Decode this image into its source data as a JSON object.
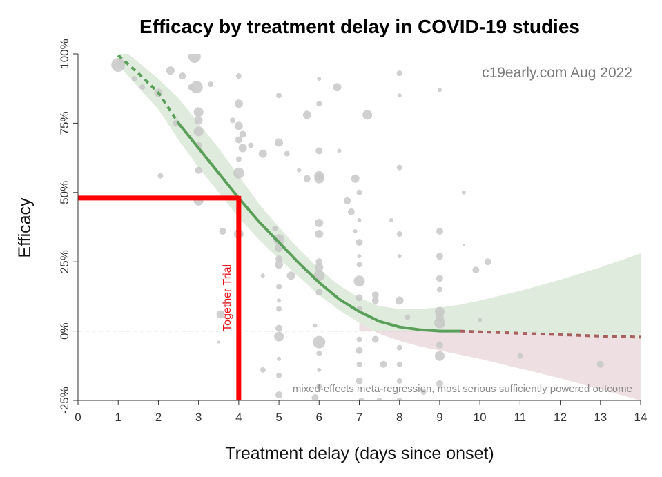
{
  "colors": {
    "fit_line": "#5aa05a",
    "band_upper": "#dfebdc",
    "band_lower": "#eedfe2",
    "points": "#c8c8c8",
    "negative_line": "#a8605e",
    "highlight": "#ff0000",
    "zero_line": "#999999"
  },
  "chart_data": {
    "type": "scatter",
    "title": "Efficacy by treatment delay in COVID-19 studies",
    "watermark": "c19early.com Aug 2022",
    "footnote": "mixed-effects meta-regression, most serious sufficiently powered outcome",
    "xlabel": "Treatment delay (days since onset)",
    "ylabel": "Efficacy",
    "xlim": [
      0,
      14
    ],
    "ylim": [
      -25,
      100
    ],
    "xticks": [
      "0",
      "1",
      "2",
      "3",
      "4",
      "5",
      "6",
      "7",
      "8",
      "9",
      "10",
      "11",
      "12",
      "13",
      "14"
    ],
    "yticks": [
      {
        "value": 100,
        "label": "100%"
      },
      {
        "value": 75,
        "label": "75%"
      },
      {
        "value": 50,
        "label": "50%"
      },
      {
        "value": 25,
        "label": "25%"
      },
      {
        "value": 0,
        "label": "0%"
      },
      {
        "value": -25,
        "label": "-25%"
      }
    ],
    "highlight": {
      "label": "Together Trial",
      "x": 4,
      "y": 48
    },
    "fit": {
      "x": [
        1,
        1.5,
        2,
        2.5,
        3,
        3.5,
        4,
        4.5,
        5,
        5.5,
        6,
        6.5,
        7,
        7.5,
        8,
        8.5,
        9,
        9.5,
        10,
        11,
        12,
        13,
        14
      ],
      "y": [
        99.5,
        93,
        86,
        75,
        66,
        57,
        48,
        39.5,
        32,
        24.5,
        17.5,
        11.5,
        7,
        3.5,
        1.5,
        0.5,
        0,
        0,
        -0.3,
        -0.8,
        -1.3,
        -1.8,
        -2.2
      ],
      "upper": [
        103,
        97,
        91,
        84,
        75,
        66,
        56,
        46,
        37.5,
        29.5,
        22.5,
        16.5,
        12,
        9,
        8,
        8,
        8.5,
        9.5,
        11,
        14.5,
        18.5,
        23,
        28
      ],
      "lower": [
        96,
        88,
        80,
        69,
        59,
        50,
        41,
        33,
        26,
        19.5,
        13,
        7.5,
        3,
        -1,
        -3.5,
        -5.5,
        -7,
        -8.5,
        -10,
        -13.5,
        -17,
        -21,
        -25
      ]
    },
    "points": [
      {
        "x": 1.0,
        "y": 96,
        "s": 10
      },
      {
        "x": 1.4,
        "y": 91,
        "s": 4
      },
      {
        "x": 1.6,
        "y": 88,
        "s": 4
      },
      {
        "x": 2.0,
        "y": 86,
        "s": 6
      },
      {
        "x": 2.05,
        "y": 56,
        "s": 4
      },
      {
        "x": 2.3,
        "y": 94,
        "s": 6
      },
      {
        "x": 2.45,
        "y": 75,
        "s": 5
      },
      {
        "x": 2.6,
        "y": 92,
        "s": 5
      },
      {
        "x": 2.8,
        "y": 88,
        "s": 4
      },
      {
        "x": 2.9,
        "y": 99,
        "s": 9
      },
      {
        "x": 2.95,
        "y": 88,
        "s": 9
      },
      {
        "x": 3.0,
        "y": 79,
        "s": 7
      },
      {
        "x": 3.0,
        "y": 76,
        "s": 6
      },
      {
        "x": 3.0,
        "y": 72,
        "s": 7
      },
      {
        "x": 3.0,
        "y": 67,
        "s": 5
      },
      {
        "x": 3.0,
        "y": 58,
        "s": 5
      },
      {
        "x": 3.0,
        "y": 47,
        "s": 7
      },
      {
        "x": 3.3,
        "y": 89,
        "s": 4
      },
      {
        "x": 3.6,
        "y": 36,
        "s": 5
      },
      {
        "x": 3.55,
        "y": 6,
        "s": 6
      },
      {
        "x": 3.5,
        "y": -4,
        "s": 2
      },
      {
        "x": 3.85,
        "y": 76,
        "s": 4
      },
      {
        "x": 4.0,
        "y": 92,
        "s": 4
      },
      {
        "x": 4.0,
        "y": 82,
        "s": 6
      },
      {
        "x": 4.0,
        "y": 74,
        "s": 6
      },
      {
        "x": 4.0,
        "y": 69,
        "s": 5
      },
      {
        "x": 4.0,
        "y": 62,
        "s": 4
      },
      {
        "x": 4.0,
        "y": 57,
        "s": 8
      },
      {
        "x": 4.0,
        "y": 35,
        "s": 7
      },
      {
        "x": 4.1,
        "y": 71,
        "s": 5
      },
      {
        "x": 4.1,
        "y": 66,
        "s": 6
      },
      {
        "x": 4.3,
        "y": 67,
        "s": 4
      },
      {
        "x": 4.6,
        "y": 64,
        "s": 6
      },
      {
        "x": 4.6,
        "y": 20,
        "s": 3
      },
      {
        "x": 4.6,
        "y": -14,
        "s": 4
      },
      {
        "x": 4.9,
        "y": 37,
        "s": 4
      },
      {
        "x": 5.0,
        "y": 85,
        "s": 4
      },
      {
        "x": 5.0,
        "y": 68,
        "s": 6
      },
      {
        "x": 5.0,
        "y": 33,
        "s": 8
      },
      {
        "x": 5.0,
        "y": 30,
        "s": 6
      },
      {
        "x": 5.0,
        "y": 26,
        "s": 5
      },
      {
        "x": 5.0,
        "y": 24,
        "s": 6
      },
      {
        "x": 5.0,
        "y": 16,
        "s": 4
      },
      {
        "x": 5.0,
        "y": 11,
        "s": 3
      },
      {
        "x": 5.0,
        "y": 8,
        "s": 4
      },
      {
        "x": 5.0,
        "y": 1,
        "s": 5
      },
      {
        "x": 5.0,
        "y": -2,
        "s": 7
      },
      {
        "x": 5.0,
        "y": -10,
        "s": 3
      },
      {
        "x": 5.0,
        "y": -16,
        "s": 4
      },
      {
        "x": 5.0,
        "y": -23,
        "s": 5
      },
      {
        "x": 5.2,
        "y": 64,
        "s": 4
      },
      {
        "x": 5.3,
        "y": 20,
        "s": 6
      },
      {
        "x": 5.5,
        "y": 58,
        "s": 3
      },
      {
        "x": 5.7,
        "y": 78,
        "s": 6
      },
      {
        "x": 5.7,
        "y": 55,
        "s": 5
      },
      {
        "x": 5.9,
        "y": 2,
        "s": 3
      },
      {
        "x": 6.0,
        "y": 91,
        "s": 3
      },
      {
        "x": 6.0,
        "y": 82,
        "s": 4
      },
      {
        "x": 6.0,
        "y": 65,
        "s": 5
      },
      {
        "x": 6.0,
        "y": 56,
        "s": 7
      },
      {
        "x": 6.0,
        "y": 55,
        "s": 7
      },
      {
        "x": 6.0,
        "y": 39,
        "s": 6
      },
      {
        "x": 6.0,
        "y": 35,
        "s": 6
      },
      {
        "x": 6.0,
        "y": 25,
        "s": 5
      },
      {
        "x": 6.0,
        "y": 23,
        "s": 6
      },
      {
        "x": 6.0,
        "y": 20,
        "s": 8
      },
      {
        "x": 6.0,
        "y": 14,
        "s": 5
      },
      {
        "x": 6.0,
        "y": -4,
        "s": 9
      },
      {
        "x": 6.0,
        "y": -8,
        "s": 4
      },
      {
        "x": 6.0,
        "y": -14,
        "s": 3
      },
      {
        "x": 6.0,
        "y": -20,
        "s": 4
      },
      {
        "x": 5.9,
        "y": -24,
        "s": 5
      },
      {
        "x": 6.45,
        "y": 88,
        "s": 6
      },
      {
        "x": 6.5,
        "y": 65,
        "s": 3
      },
      {
        "x": 6.7,
        "y": 47,
        "s": 5
      },
      {
        "x": 6.8,
        "y": 43,
        "s": 5
      },
      {
        "x": 6.9,
        "y": 36,
        "s": 3
      },
      {
        "x": 6.9,
        "y": 55,
        "s": 6
      },
      {
        "x": 7.0,
        "y": 50,
        "s": 4
      },
      {
        "x": 7.0,
        "y": 40,
        "s": 3
      },
      {
        "x": 7.0,
        "y": 32,
        "s": 5
      },
      {
        "x": 7.0,
        "y": 27,
        "s": 3
      },
      {
        "x": 7.0,
        "y": 24,
        "s": 4
      },
      {
        "x": 7.0,
        "y": 18,
        "s": 8
      },
      {
        "x": 7.0,
        "y": 12,
        "s": 5
      },
      {
        "x": 7.0,
        "y": 8,
        "s": 4
      },
      {
        "x": 7.0,
        "y": -3,
        "s": 4
      },
      {
        "x": 7.0,
        "y": -7,
        "s": 5
      },
      {
        "x": 7.0,
        "y": -12,
        "s": 4
      },
      {
        "x": 7.0,
        "y": -18,
        "s": 5
      },
      {
        "x": 7.05,
        "y": -25,
        "s": 4
      },
      {
        "x": 7.2,
        "y": 78,
        "s": 7
      },
      {
        "x": 7.4,
        "y": 13,
        "s": 5
      },
      {
        "x": 7.4,
        "y": 11,
        "s": 5
      },
      {
        "x": 7.4,
        "y": -3,
        "s": 5
      },
      {
        "x": 7.5,
        "y": -25,
        "s": 4
      },
      {
        "x": 7.6,
        "y": -12,
        "s": 5
      },
      {
        "x": 7.8,
        "y": 40,
        "s": 3
      },
      {
        "x": 8.0,
        "y": 93,
        "s": 4
      },
      {
        "x": 8.0,
        "y": 85,
        "s": 3
      },
      {
        "x": 8.0,
        "y": 59,
        "s": 4
      },
      {
        "x": 8.0,
        "y": 35,
        "s": 4
      },
      {
        "x": 8.0,
        "y": 27,
        "s": 3
      },
      {
        "x": 8.0,
        "y": 11,
        "s": 6
      },
      {
        "x": 8.0,
        "y": -6,
        "s": 4
      },
      {
        "x": 8.0,
        "y": -12,
        "s": 4
      },
      {
        "x": 8.0,
        "y": -18,
        "s": 4
      },
      {
        "x": 8.0,
        "y": -25,
        "s": 4
      },
      {
        "x": 8.2,
        "y": 5,
        "s": 4
      },
      {
        "x": 8.6,
        "y": -22,
        "s": 4
      },
      {
        "x": 9.0,
        "y": 87,
        "s": 3
      },
      {
        "x": 9.0,
        "y": 36,
        "s": 5
      },
      {
        "x": 9.0,
        "y": 27,
        "s": 5
      },
      {
        "x": 9.0,
        "y": 19,
        "s": 5
      },
      {
        "x": 9.0,
        "y": 15,
        "s": 4
      },
      {
        "x": 9.0,
        "y": 7,
        "s": 7
      },
      {
        "x": 9.0,
        "y": 5,
        "s": 6
      },
      {
        "x": 9.0,
        "y": 3,
        "s": 8
      },
      {
        "x": 9.0,
        "y": -5,
        "s": 5
      },
      {
        "x": 9.0,
        "y": -9,
        "s": 7
      },
      {
        "x": 9.0,
        "y": -19,
        "s": 5
      },
      {
        "x": 9.6,
        "y": 50,
        "s": 3
      },
      {
        "x": 9.6,
        "y": 31,
        "s": 2
      },
      {
        "x": 9.9,
        "y": 22,
        "s": 5
      },
      {
        "x": 10.0,
        "y": 4,
        "s": 3
      },
      {
        "x": 10.2,
        "y": 25,
        "s": 5
      },
      {
        "x": 11.0,
        "y": -9,
        "s": 4
      },
      {
        "x": 13.0,
        "y": -12,
        "s": 5
      }
    ]
  }
}
